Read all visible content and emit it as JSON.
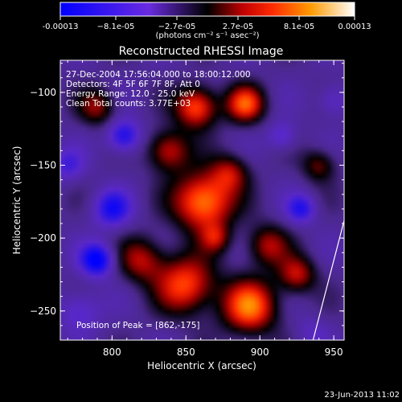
{
  "colorbar": {
    "ticks": [
      {
        "label": "-0.00013",
        "value": -0.00013
      },
      {
        "label": "−8.1e-05",
        "value": -8.1e-05
      },
      {
        "label": "−2.7e-05",
        "value": -2.7e-05
      },
      {
        "label": "2.7e-05",
        "value": 2.7e-05
      },
      {
        "label": "8.1e-05",
        "value": 8.1e-05
      },
      {
        "label": "0.00013",
        "value": 0.00013
      }
    ],
    "units_label": "(photons cm⁻² s⁻¹ asec⁻²)",
    "colors": [
      "#0000ff",
      "#6a2be0",
      "#000000",
      "#ff2a00",
      "#ff8c00",
      "#ffffff"
    ]
  },
  "chart_data": {
    "type": "heatmap",
    "title": "Reconstructed RHESSI Image",
    "xlabel": "Heliocentric X (arcsec)",
    "ylabel": "Heliocentric Y (arcsec)",
    "xlim": [
      765,
      957
    ],
    "ylim": [
      -270,
      -78
    ],
    "x_ticks": [
      {
        "value": 800,
        "label": "800"
      },
      {
        "value": 850,
        "label": "850"
      },
      {
        "value": 900,
        "label": "900"
      },
      {
        "value": 950,
        "label": "950"
      }
    ],
    "y_ticks": [
      {
        "value": -100,
        "label": "−100"
      },
      {
        "value": -150,
        "label": "−150"
      },
      {
        "value": -200,
        "label": "−200"
      },
      {
        "value": -250,
        "label": "−250"
      }
    ],
    "annotations": [
      "27-Dec-2004 17:56:04.000 to 18:00:12.000",
      "Detectors: 4F 5F 6F 7F 8F, Att 0",
      "Energy Range: 12.0 - 25.0 keV",
      "Clean     Total counts: 3.77E+03"
    ],
    "peak_label": "Position of Peak = [862,-175]",
    "peak": [
      862,
      -175
    ],
    "limb_line": [
      [
        936,
        -270
      ],
      [
        957,
        -188
      ]
    ]
  },
  "footer_timestamp": "23-Jun-2013 11:02"
}
